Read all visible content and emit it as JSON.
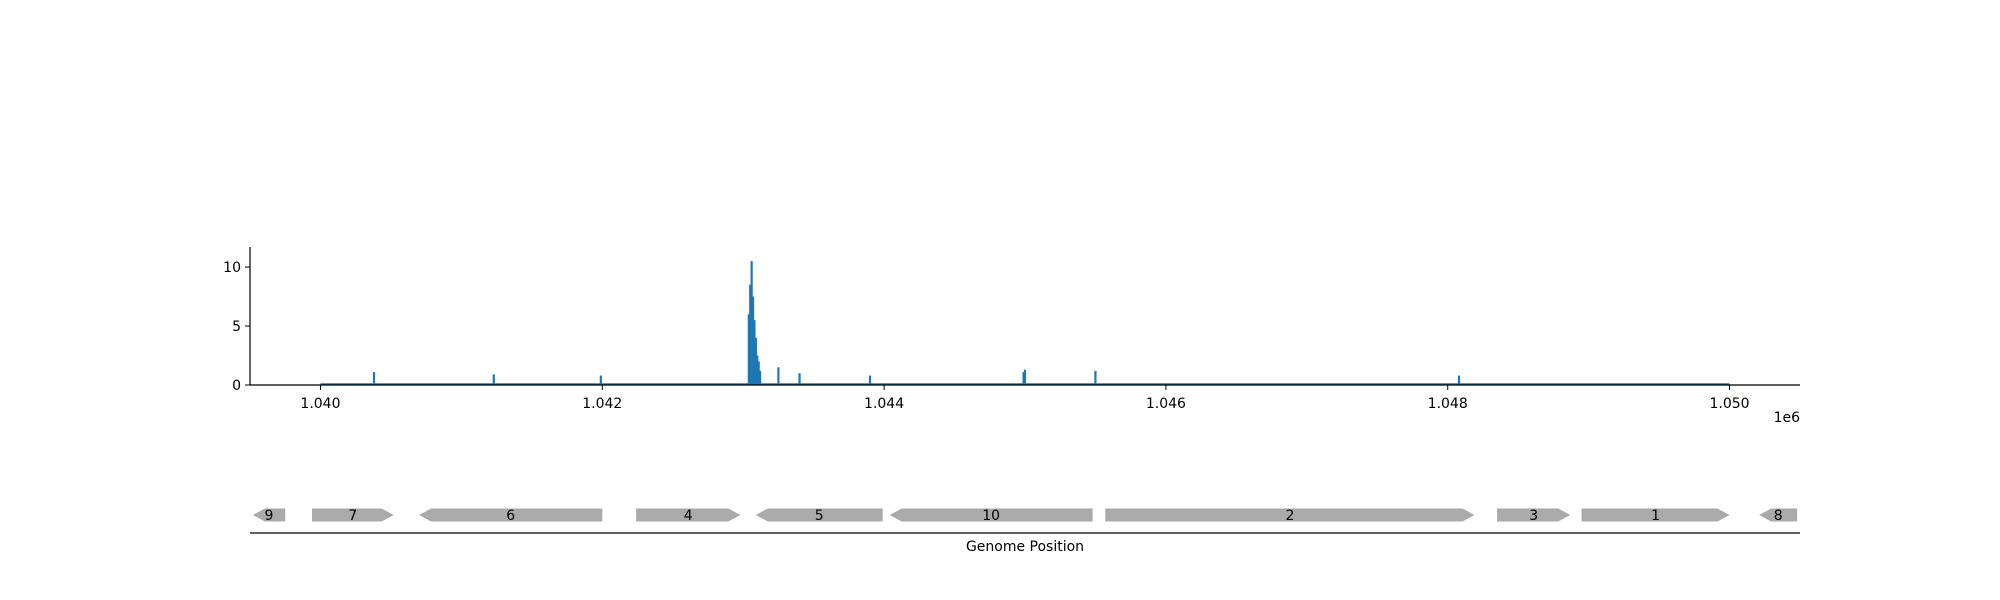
{
  "chart_data": [
    {
      "type": "bar",
      "title": "",
      "xlabel": "",
      "ylabel": "",
      "x_offset_label": "1e6",
      "xlim": [
        1039500,
        1050500
      ],
      "ylim": [
        0,
        11.7
      ],
      "x_ticks": [
        1040000,
        1042000,
        1044000,
        1046000,
        1048000,
        1050000
      ],
      "x_tick_labels": [
        "1.040",
        "1.042",
        "1.044",
        "1.046",
        "1.048",
        "1.050"
      ],
      "y_ticks": [
        0,
        5,
        10
      ],
      "y_tick_labels": [
        "0",
        "5",
        "10"
      ],
      "baseline_range": [
        1040000,
        1050000
      ],
      "grid": false,
      "color": "#1f77b4",
      "x": [
        1040380,
        1041230,
        1041990,
        1043040,
        1043050,
        1043060,
        1043070,
        1043080,
        1043090,
        1043100,
        1043110,
        1043120,
        1043250,
        1043400,
        1043900,
        1044990,
        1045000,
        1045500,
        1048080
      ],
      "values": [
        1.1,
        0.9,
        0.8,
        6.0,
        8.5,
        10.5,
        7.5,
        5.5,
        4.0,
        2.5,
        2.0,
        1.2,
        1.5,
        1.0,
        0.8,
        1.1,
        1.3,
        1.2,
        0.8
      ]
    },
    {
      "type": "gene-track",
      "xlabel": "Genome Position",
      "genes": [
        {
          "label": "9",
          "start": 1039520,
          "end": 1039750,
          "strand": "-"
        },
        {
          "label": "7",
          "start": 1039940,
          "end": 1040520,
          "strand": "+"
        },
        {
          "label": "6",
          "start": 1040700,
          "end": 1042000,
          "strand": "-"
        },
        {
          "label": "4",
          "start": 1042240,
          "end": 1042980,
          "strand": "+"
        },
        {
          "label": "5",
          "start": 1043090,
          "end": 1043990,
          "strand": "-"
        },
        {
          "label": "10",
          "start": 1044040,
          "end": 1045480,
          "strand": "-"
        },
        {
          "label": "2",
          "start": 1045570,
          "end": 1048190,
          "strand": "+"
        },
        {
          "label": "3",
          "start": 1048350,
          "end": 1048870,
          "strand": "+"
        },
        {
          "label": "1",
          "start": 1048950,
          "end": 1050000,
          "strand": "+"
        },
        {
          "label": "8",
          "start": 1050210,
          "end": 1050480,
          "strand": "-"
        }
      ]
    }
  ]
}
